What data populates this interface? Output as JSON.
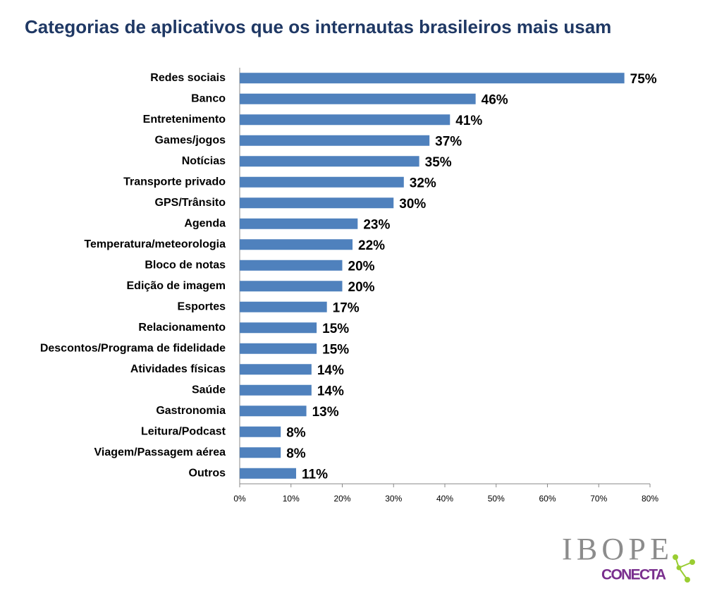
{
  "chart_data": {
    "type": "bar",
    "orientation": "horizontal",
    "title": "Categorias de aplicativos que os internautas brasileiros mais usam",
    "categories": [
      "Redes sociais",
      "Banco",
      "Entretenimento",
      "Games/jogos",
      "Notícias",
      "Transporte privado",
      "GPS/Trânsito",
      "Agenda",
      "Temperatura/meteorologia",
      "Bloco de notas",
      "Edição de imagem",
      "Esportes",
      "Relacionamento",
      "Descontos/Programa de fidelidade",
      "Atividades físicas",
      "Saúde",
      "Gastronomia",
      "Leitura/Podcast",
      "Viagem/Passagem aérea",
      "Outros"
    ],
    "values": [
      75,
      46,
      41,
      37,
      35,
      32,
      30,
      23,
      22,
      20,
      20,
      17,
      15,
      15,
      14,
      14,
      13,
      8,
      8,
      11
    ],
    "value_labels": [
      "75%",
      "46%",
      "41%",
      "37%",
      "35%",
      "32%",
      "30%",
      "23%",
      "22%",
      "20%",
      "20%",
      "17%",
      "15%",
      "15%",
      "14%",
      "14%",
      "13%",
      "8%",
      "8%",
      "11%"
    ],
    "color": "#4f81bd",
    "xlim": [
      0,
      80
    ],
    "xticks": [
      {
        "value": 0,
        "label": "0%"
      },
      {
        "value": 10,
        "label": "10%"
      },
      {
        "value": 20,
        "label": "20%"
      },
      {
        "value": 30,
        "label": "30%"
      },
      {
        "value": 40,
        "label": "40%"
      },
      {
        "value": 50,
        "label": "50%"
      },
      {
        "value": 60,
        "label": "60%"
      },
      {
        "value": 70,
        "label": "70%"
      },
      {
        "value": 80,
        "label": "80%"
      }
    ],
    "grid": false
  },
  "logo": {
    "brand": "IBOPE",
    "product": "CONECTA"
  }
}
